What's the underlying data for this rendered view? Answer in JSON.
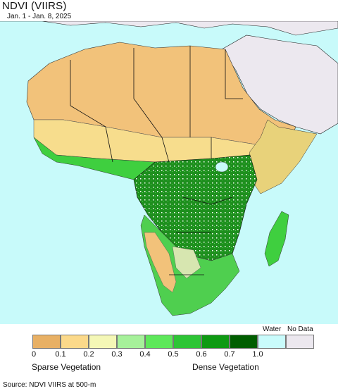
{
  "header": {
    "title": "NDVI (VIIRS)",
    "date_range": "Jan. 1 - Jan. 8, 2025"
  },
  "map": {
    "region": "Africa",
    "ocean_color": "#c8fafa",
    "outside_region_color": "#ece8ef",
    "desert_color": "#f2c27a",
    "sparse_color": "#f7dd8d",
    "dense_color": "#0f7a0f"
  },
  "legend": {
    "water_label": "Water",
    "no_data_label": "No Data",
    "classes": [
      {
        "color": "#e8b064"
      },
      {
        "color": "#fbd98a"
      },
      {
        "color": "#f4f7b6"
      },
      {
        "color": "#a6f19a"
      },
      {
        "color": "#5ee85a"
      },
      {
        "color": "#2dc535"
      },
      {
        "color": "#0e9a12"
      },
      {
        "color": "#005e00"
      },
      {
        "color": "#c9fbfb"
      },
      {
        "color": "#ece8ef"
      }
    ],
    "tick_labels": [
      "0",
      "0.1",
      "0.2",
      "0.3",
      "0.4",
      "0.5",
      "0.6",
      "0.7",
      "1.0"
    ],
    "sparse_label": "Sparse Vegetation",
    "dense_label": "Dense Vegetation"
  },
  "footer": {
    "source": "Source: NDVI VIIRS at 500-m"
  }
}
